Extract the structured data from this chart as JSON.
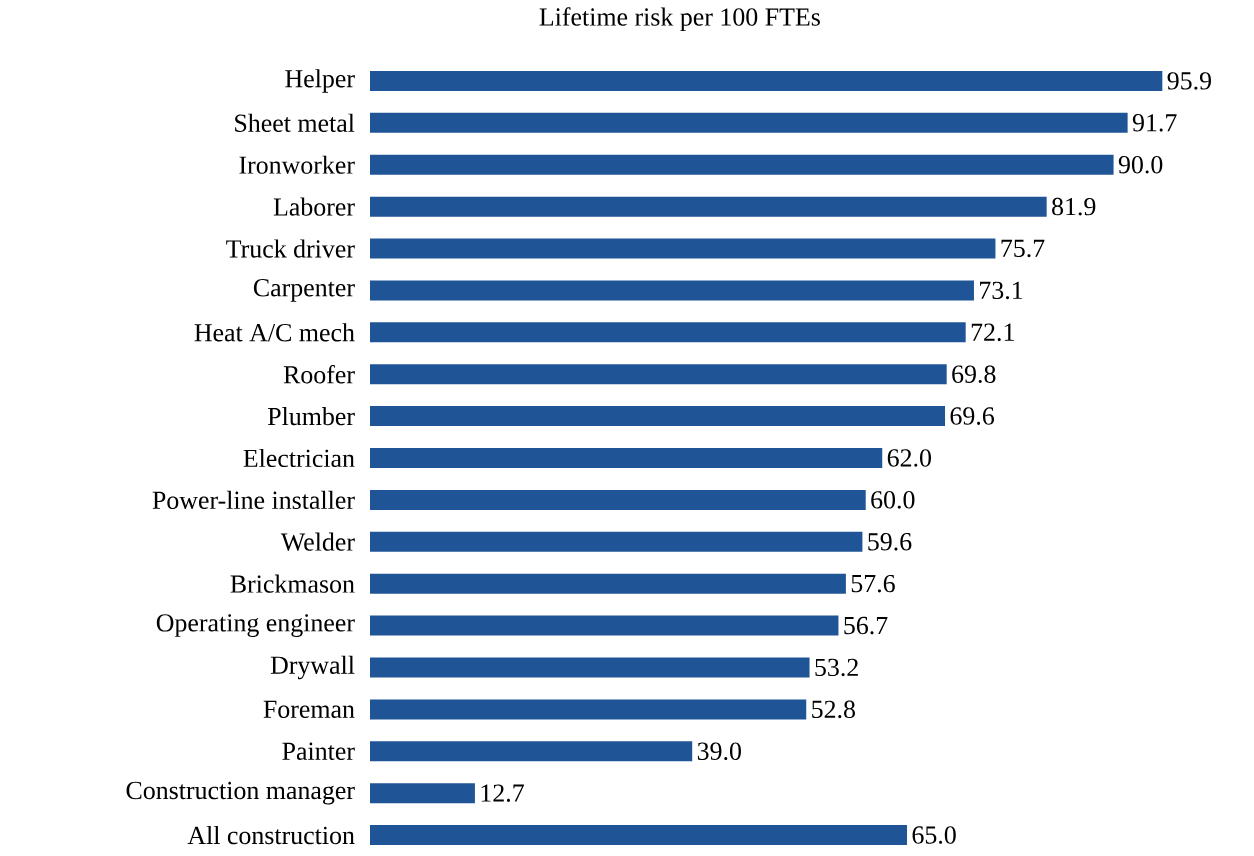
{
  "chart_data": {
    "type": "bar",
    "orientation": "horizontal",
    "title": "Lifetime risk per 100 FTEs",
    "categories": [
      "Helper",
      "Sheet metal",
      "Ironworker",
      "Laborer",
      "Truck driver",
      "Carpenter",
      "Heat A/C mech",
      "Roofer",
      "Plumber",
      "Electrician",
      "Power-line installer",
      "Welder",
      "Brickmason",
      "Operating engineer",
      "Drywall",
      "Foreman",
      "Painter",
      "Construction manager",
      "All construction"
    ],
    "values": [
      95.9,
      91.7,
      90.0,
      81.9,
      75.7,
      73.1,
      72.1,
      69.8,
      69.6,
      62.0,
      60.0,
      59.6,
      57.6,
      56.7,
      53.2,
      52.8,
      39.0,
      12.7,
      65.0
    ],
    "value_labels": [
      "95.9",
      "91.7",
      "90.0",
      "81.9",
      "75.7",
      "73.1",
      "72.1",
      "69.8",
      "69.6",
      "62.0",
      "60.0",
      "59.6",
      "57.6",
      "56.7",
      "53.2",
      "52.8",
      "39.0",
      "12.7",
      "65.0"
    ],
    "color": "#1f5596",
    "tick_labels": "y"
  }
}
